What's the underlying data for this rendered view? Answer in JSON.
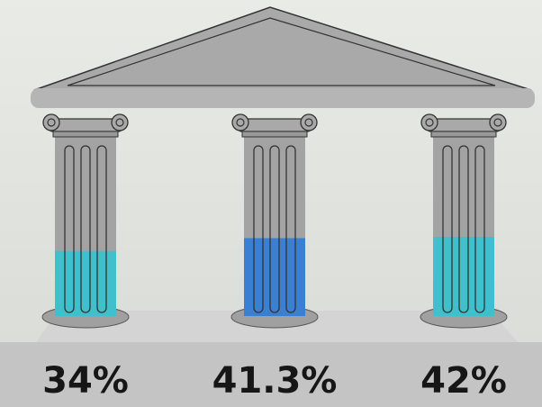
{
  "chart_data": {
    "type": "bar",
    "values": [
      34,
      41.3,
      42
    ],
    "value_labels": [
      "34%",
      "41.3%",
      "42%"
    ],
    "colors": [
      "#3fc0cc",
      "#3a7fd2",
      "#3fc0cc"
    ],
    "ylim": [
      0,
      100
    ]
  }
}
